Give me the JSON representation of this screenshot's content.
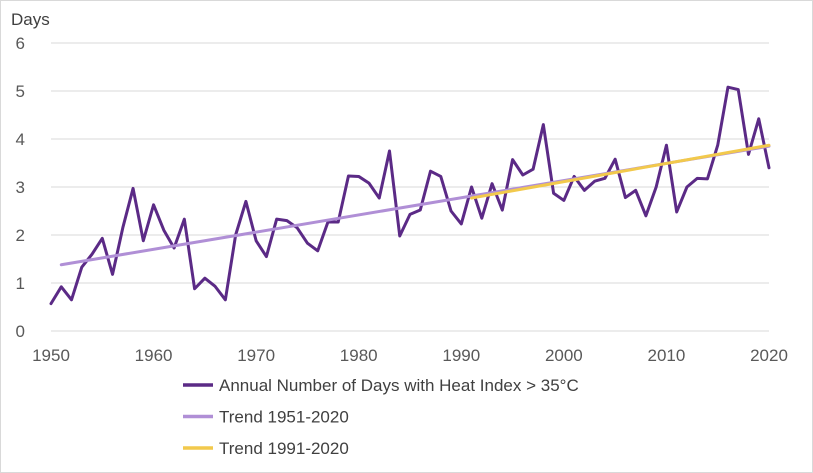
{
  "chart_data": {
    "type": "line",
    "title": "",
    "xlabel": "",
    "ylabel": "Days",
    "xlim": [
      1950,
      2020
    ],
    "ylim": [
      0,
      6
    ],
    "xticks": [
      1950,
      1960,
      1970,
      1980,
      1990,
      2000,
      2010,
      2020
    ],
    "yticks": [
      0,
      1,
      2,
      3,
      4,
      5,
      6
    ],
    "grid": true,
    "legend_position": "bottom",
    "series": [
      {
        "name": "Annual Number of Days with Heat Index > 35°C",
        "color": "#5b2a86",
        "x": [
          1950,
          1951,
          1952,
          1953,
          1954,
          1955,
          1956,
          1957,
          1958,
          1959,
          1960,
          1961,
          1962,
          1963,
          1964,
          1965,
          1966,
          1967,
          1968,
          1969,
          1970,
          1971,
          1972,
          1973,
          1974,
          1975,
          1976,
          1977,
          1978,
          1979,
          1980,
          1981,
          1982,
          1983,
          1984,
          1985,
          1986,
          1987,
          1988,
          1989,
          1990,
          1991,
          1992,
          1993,
          1994,
          1995,
          1996,
          1997,
          1998,
          1999,
          2000,
          2001,
          2002,
          2003,
          2004,
          2005,
          2006,
          2007,
          2008,
          2009,
          2010,
          2011,
          2012,
          2013,
          2014,
          2015,
          2016,
          2017,
          2018,
          2019,
          2020
        ],
        "values": [
          0.57,
          0.92,
          0.65,
          1.33,
          1.6,
          1.93,
          1.18,
          2.15,
          2.97,
          1.88,
          2.63,
          2.1,
          1.73,
          2.33,
          0.88,
          1.1,
          0.93,
          0.65,
          2.0,
          2.7,
          1.88,
          1.55,
          2.33,
          2.3,
          2.15,
          1.83,
          1.67,
          2.27,
          2.27,
          3.23,
          3.22,
          3.08,
          2.77,
          3.75,
          1.98,
          2.43,
          2.52,
          3.33,
          3.22,
          2.5,
          2.23,
          3.0,
          2.35,
          3.07,
          2.52,
          3.57,
          3.25,
          3.37,
          4.3,
          2.87,
          2.72,
          3.22,
          2.93,
          3.12,
          3.18,
          3.58,
          2.78,
          2.93,
          2.4,
          3.0,
          3.87,
          2.48,
          3.0,
          3.18,
          3.17,
          3.87,
          5.08,
          5.03,
          3.68,
          4.42,
          3.4
        ]
      },
      {
        "name": "Trend 1951-2020",
        "color": "#b08fd6",
        "x": [
          1951,
          2020
        ],
        "values": [
          1.38,
          3.85
        ]
      },
      {
        "name": "Trend 1991-2020",
        "color": "#f2c94c",
        "x": [
          1991,
          2020
        ],
        "values": [
          2.77,
          3.87
        ]
      }
    ]
  }
}
